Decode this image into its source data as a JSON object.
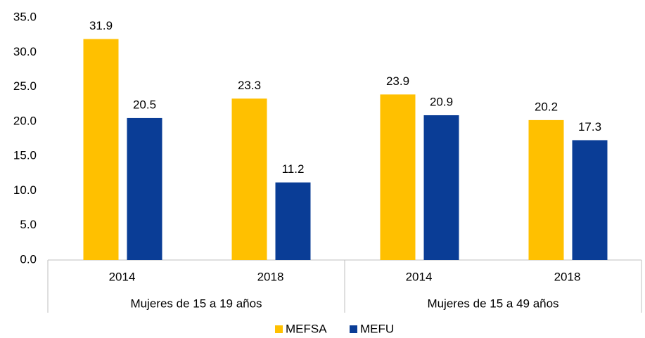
{
  "chart_data": {
    "type": "bar",
    "categories": [
      "2014",
      "2018",
      "2014",
      "2018"
    ],
    "groups": [
      "Mujeres de 15 a 19 años",
      "Mujeres de 15 a 49 años"
    ],
    "series": [
      {
        "name": "MEFSA",
        "color": "#ffc000",
        "values": [
          31.9,
          23.3,
          23.9,
          20.2
        ]
      },
      {
        "name": "MEFU",
        "color": "#0a3d96",
        "values": [
          20.5,
          11.2,
          20.9,
          17.3
        ]
      }
    ],
    "ylim": [
      0,
      35
    ],
    "yticks": [
      {
        "value": 0,
        "label": "0.0"
      },
      {
        "value": 5,
        "label": "5.0"
      },
      {
        "value": 10,
        "label": "10.0"
      },
      {
        "value": 15,
        "label": "15.0"
      },
      {
        "value": 20,
        "label": "20.0"
      },
      {
        "value": 25,
        "label": "25.0"
      },
      {
        "value": 30,
        "label": "30.0"
      },
      {
        "value": 35,
        "label": "35.0"
      }
    ],
    "grid": false,
    "legend": "bottom"
  }
}
